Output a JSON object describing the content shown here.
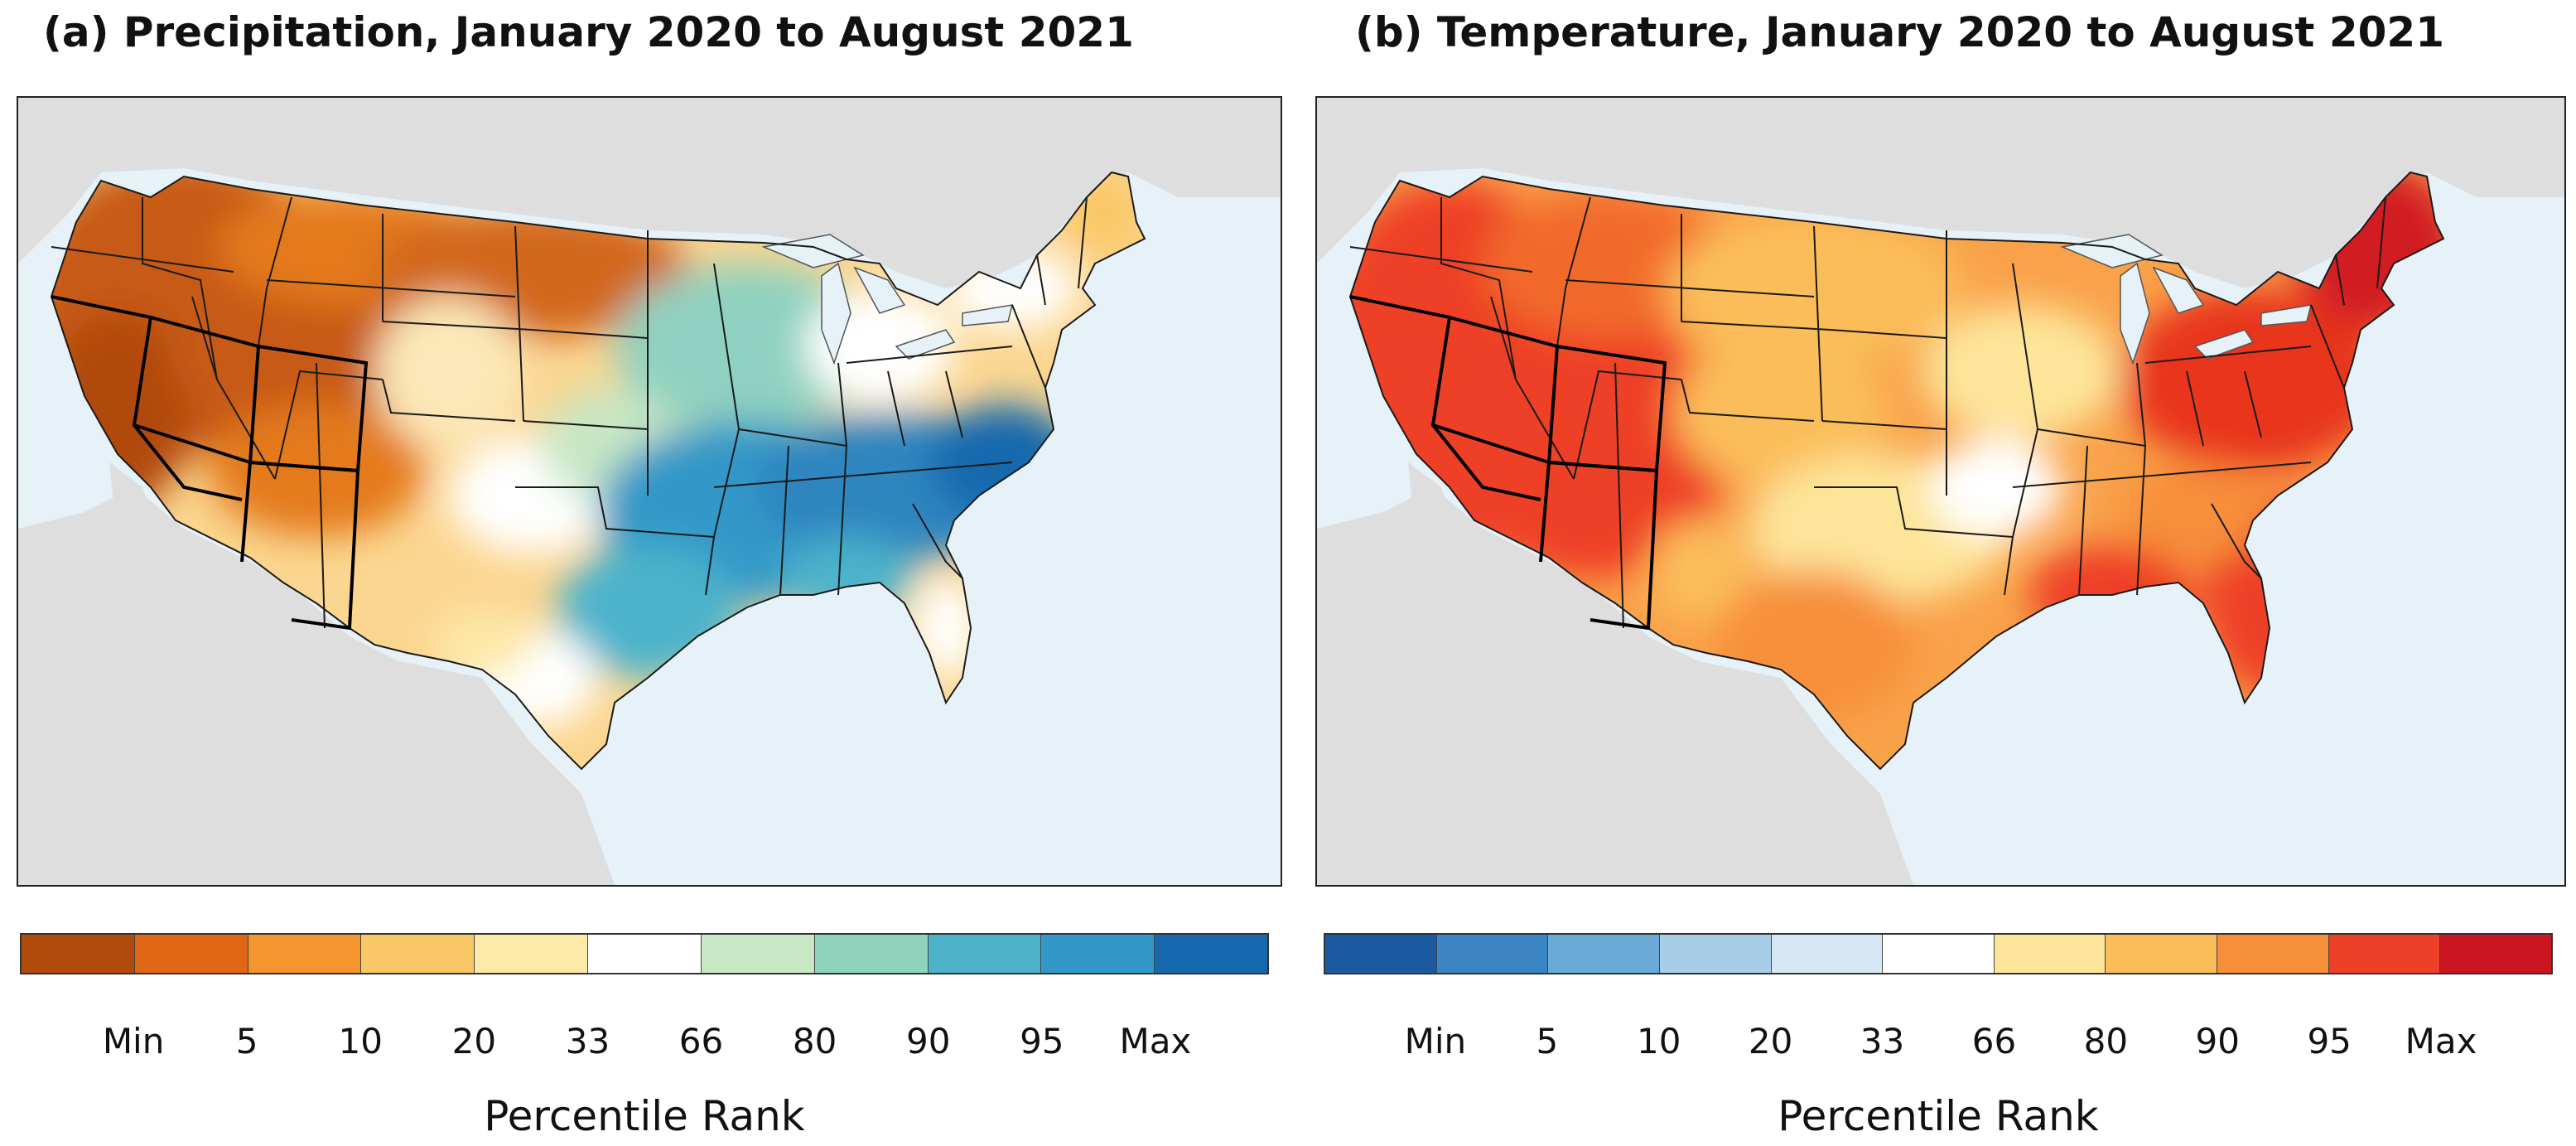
{
  "panels": [
    {
      "title": "(a) Precipitation, January 2020 to August 2021",
      "variable": "precipitation",
      "legend": {
        "colors": [
          "#b14a0d",
          "#de6614",
          "#f4952e",
          "#fac766",
          "#fde9a8",
          "#ffffff",
          "#c8e7c4",
          "#90d3bd",
          "#4cb3cb",
          "#3198c8",
          "#1769ad"
        ],
        "ticks": [
          "Min",
          "5",
          "10",
          "20",
          "33",
          "66",
          "80",
          "90",
          "95",
          "Max"
        ],
        "label": "Percentile Rank"
      }
    },
    {
      "title": "(b) Temperature, January 2020 to August 2021",
      "variable": "temperature",
      "legend": {
        "colors": [
          "#1b5aa1",
          "#3b84c3",
          "#6aaad6",
          "#a8cde6",
          "#d6e8f4",
          "#ffffff",
          "#fde59a",
          "#fbbd5a",
          "#f78f3a",
          "#ee4026",
          "#cb1520"
        ],
        "ticks": [
          "Min",
          "5",
          "10",
          "20",
          "33",
          "66",
          "80",
          "90",
          "95",
          "Max"
        ],
        "label": "Percentile Rank"
      }
    }
  ],
  "map_style": {
    "ocean": "#e6f1f8",
    "land_outside": "#dedede",
    "lakes": "#e6f1f8",
    "state_border": "#1a1a1a"
  }
}
